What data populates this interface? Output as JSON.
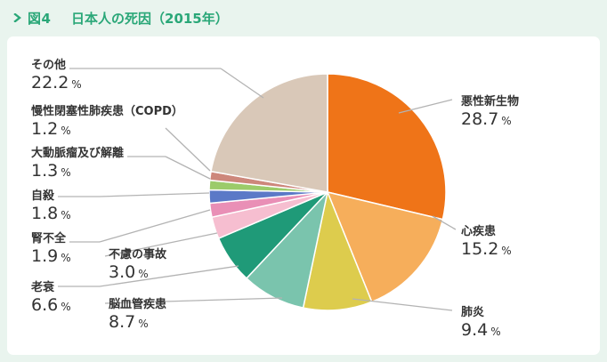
{
  "header": {
    "figure_label": "図4",
    "title": "日本人の死因（2015年）"
  },
  "colors": {
    "background": "#e9f4ee",
    "panel": "#ffffff",
    "accent": "#2aa778",
    "leader_line": "#b3b3b3",
    "text": "#333333"
  },
  "chart_data": {
    "type": "pie",
    "title": "日本人の死因（2015年）",
    "start_angle_deg": 0,
    "direction": "clockwise",
    "unit": "%",
    "slices": [
      {
        "name": "悪性新生物",
        "value": 28.7,
        "display": "28.7",
        "color": "#ef7418"
      },
      {
        "name": "心疾患",
        "value": 15.2,
        "display": "15.2",
        "color": "#f6ae5b"
      },
      {
        "name": "肺炎",
        "value": 9.4,
        "display": "9.4",
        "color": "#ddcc4d"
      },
      {
        "name": "脳血管疾患",
        "value": 8.7,
        "display": "8.7",
        "color": "#7ac4ad"
      },
      {
        "name": "老衰",
        "value": 6.6,
        "display": "6.6",
        "color": "#1f9a78"
      },
      {
        "name": "不慮の事故",
        "value": 3.0,
        "display": "3.0",
        "color": "#f6bed0"
      },
      {
        "name": "腎不全",
        "value": 1.9,
        "display": "1.9",
        "color": "#e98fb6"
      },
      {
        "name": "自殺",
        "value": 1.8,
        "display": "1.8",
        "color": "#5b79c7"
      },
      {
        "name": "大動脈瘤及び解離",
        "value": 1.3,
        "display": "1.3",
        "color": "#9ccb6a"
      },
      {
        "name": "慢性閉塞性肺疾患（COPD）",
        "value": 1.2,
        "display": "1.2",
        "color": "#cd877b"
      },
      {
        "name": "その他",
        "value": 22.2,
        "display": "22.2",
        "color": "#d9c8b8"
      }
    ]
  }
}
